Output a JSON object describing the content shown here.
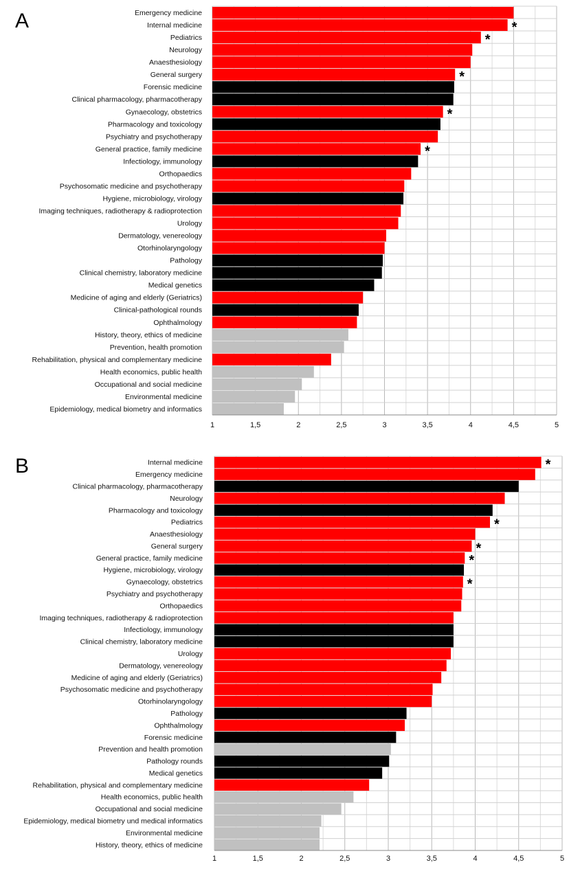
{
  "colors": {
    "red": "#ff0000",
    "black": "#000000",
    "gray": "#c0c0c0",
    "grid": "#b8b8b8"
  },
  "chart_data": [
    {
      "panel_label": "A",
      "type": "bar",
      "orientation": "horizontal",
      "xlim": [
        1,
        5
      ],
      "ticks": [
        "1",
        "1,5",
        "2",
        "2,5",
        "3",
        "3,5",
        "4",
        "4,5",
        "5"
      ],
      "tick_values": [
        1,
        1.5,
        2,
        2.5,
        3,
        3.5,
        4,
        4.5,
        5
      ],
      "grid": true,
      "bars": [
        {
          "label": "Emergency medicine",
          "value": 4.5,
          "color": "red",
          "star": false
        },
        {
          "label": "Internal medicine",
          "value": 4.43,
          "color": "red",
          "star": true
        },
        {
          "label": "Pediatrics",
          "value": 4.12,
          "color": "red",
          "star": true
        },
        {
          "label": "Neurology",
          "value": 4.02,
          "color": "red",
          "star": false
        },
        {
          "label": "Anaesthesiology",
          "value": 4.0,
          "color": "red",
          "star": false
        },
        {
          "label": "General surgery",
          "value": 3.82,
          "color": "red",
          "star": true
        },
        {
          "label": "Forensic medicine",
          "value": 3.81,
          "color": "black",
          "star": false
        },
        {
          "label": "Clinical pharmacology, pharmacotherapy",
          "value": 3.8,
          "color": "black",
          "star": false
        },
        {
          "label": "Gynaecology, obstetrics",
          "value": 3.68,
          "color": "red",
          "star": true
        },
        {
          "label": "Pharmacology and toxicology",
          "value": 3.65,
          "color": "black",
          "star": false
        },
        {
          "label": "Psychiatry and psychotherapy",
          "value": 3.62,
          "color": "red",
          "star": false
        },
        {
          "label": "General practice, family medicine",
          "value": 3.42,
          "color": "red",
          "star": true
        },
        {
          "label": "Infectiology, immunology",
          "value": 3.39,
          "color": "black",
          "star": false
        },
        {
          "label": "Orthopaedics",
          "value": 3.31,
          "color": "red",
          "star": false
        },
        {
          "label": "Psychosomatic medicine and psychotherapy",
          "value": 3.23,
          "color": "red",
          "star": false
        },
        {
          "label": "Hygiene, microbiology, virology",
          "value": 3.22,
          "color": "black",
          "star": false
        },
        {
          "label": "Imaging techniques, radiotherapy & radioprotection",
          "value": 3.19,
          "color": "red",
          "star": false
        },
        {
          "label": "Urology",
          "value": 3.16,
          "color": "red",
          "star": false
        },
        {
          "label": "Dermatology, venereology",
          "value": 3.02,
          "color": "red",
          "star": false
        },
        {
          "label": "Otorhinolaryngology",
          "value": 3.0,
          "color": "red",
          "star": false
        },
        {
          "label": "Pathology",
          "value": 2.98,
          "color": "black",
          "star": false
        },
        {
          "label": "Clinical chemistry, laboratory medicine",
          "value": 2.97,
          "color": "black",
          "star": false
        },
        {
          "label": "Medical genetics",
          "value": 2.88,
          "color": "black",
          "star": false
        },
        {
          "label": "Medicine of aging and elderly (Geriatrics)",
          "value": 2.75,
          "color": "red",
          "star": false
        },
        {
          "label": "Clinical-pathological rounds",
          "value": 2.7,
          "color": "black",
          "star": false
        },
        {
          "label": "Ophthalmology",
          "value": 2.68,
          "color": "red",
          "star": false
        },
        {
          "label": "History, theory, ethics of medicine",
          "value": 2.58,
          "color": "gray",
          "star": false
        },
        {
          "label": "Prevention, health promotion",
          "value": 2.53,
          "color": "gray",
          "star": false
        },
        {
          "label": "Rehabilitation, physical and complementary medicine",
          "value": 2.38,
          "color": "red",
          "star": false
        },
        {
          "label": "Health economics, public health",
          "value": 2.18,
          "color": "gray",
          "star": false
        },
        {
          "label": "Occupational and social medicine",
          "value": 2.04,
          "color": "gray",
          "star": false
        },
        {
          "label": "Environmental medicine",
          "value": 1.96,
          "color": "gray",
          "star": false
        },
        {
          "label": "Epidemiology, medical biometry and informatics",
          "value": 1.83,
          "color": "gray",
          "star": false
        }
      ]
    },
    {
      "panel_label": "B",
      "type": "bar",
      "orientation": "horizontal",
      "xlim": [
        1,
        5
      ],
      "ticks": [
        "1",
        "1,5",
        "2",
        "2,5",
        "3",
        "3,5",
        "4",
        "4,5",
        "5"
      ],
      "tick_values": [
        1,
        1.5,
        2,
        2.5,
        3,
        3.5,
        4,
        4.5,
        5
      ],
      "grid": true,
      "bars": [
        {
          "label": "Internal medicine",
          "value": 4.76,
          "color": "red",
          "star": true
        },
        {
          "label": "Emergency medicine",
          "value": 4.69,
          "color": "red",
          "star": false
        },
        {
          "label": "Clinical pharmacology, pharmacotherapy",
          "value": 4.5,
          "color": "black",
          "star": false
        },
        {
          "label": "Neurology",
          "value": 4.34,
          "color": "red",
          "star": false
        },
        {
          "label": "Pharmacology and toxicology",
          "value": 4.2,
          "color": "black",
          "star": false
        },
        {
          "label": "Pediatrics",
          "value": 4.17,
          "color": "red",
          "star": true
        },
        {
          "label": "Anaesthesiology",
          "value": 4.0,
          "color": "red",
          "star": false
        },
        {
          "label": "General surgery",
          "value": 3.96,
          "color": "red",
          "star": true
        },
        {
          "label": "General practice, family medicine",
          "value": 3.88,
          "color": "red",
          "star": true
        },
        {
          "label": "Hygiene, microbiology, virology",
          "value": 3.87,
          "color": "black",
          "star": false
        },
        {
          "label": "Gynaecology, obstetrics",
          "value": 3.86,
          "color": "red",
          "star": true
        },
        {
          "label": "Psychiatry and psychotherapy",
          "value": 3.85,
          "color": "red",
          "star": false
        },
        {
          "label": "Orthopaedics",
          "value": 3.84,
          "color": "red",
          "star": false
        },
        {
          "label": "Imaging techniques, radiotherapy & radioprotection",
          "value": 3.75,
          "color": "red",
          "star": false
        },
        {
          "label": "Infectiology, immunology",
          "value": 3.75,
          "color": "black",
          "star": false
        },
        {
          "label": "Clinical chemistry, laboratory medicine",
          "value": 3.75,
          "color": "black",
          "star": false
        },
        {
          "label": "Urology",
          "value": 3.72,
          "color": "red",
          "star": false
        },
        {
          "label": "Dermatology, venereology",
          "value": 3.67,
          "color": "red",
          "star": false
        },
        {
          "label": "Medicine of aging and elderly (Geriatrics)",
          "value": 3.61,
          "color": "red",
          "star": false
        },
        {
          "label": "Psychosomatic medicine and psychotherapy",
          "value": 3.51,
          "color": "red",
          "star": false
        },
        {
          "label": "Otorhinolaryngology",
          "value": 3.5,
          "color": "red",
          "star": false
        },
        {
          "label": "Pathology",
          "value": 3.21,
          "color": "black",
          "star": false
        },
        {
          "label": "Ophthalmology",
          "value": 3.19,
          "color": "red",
          "star": false
        },
        {
          "label": "Forensic medicine",
          "value": 3.09,
          "color": "black",
          "star": false
        },
        {
          "label": "Prevention and health promotion",
          "value": 3.03,
          "color": "gray",
          "star": false
        },
        {
          "label": "Pathology rounds",
          "value": 3.01,
          "color": "black",
          "star": false
        },
        {
          "label": "Medical genetics",
          "value": 2.93,
          "color": "black",
          "star": false
        },
        {
          "label": "Rehabilitation, physical and complementary medicine",
          "value": 2.78,
          "color": "red",
          "star": false
        },
        {
          "label": "Health economics, public health",
          "value": 2.6,
          "color": "gray",
          "star": false
        },
        {
          "label": "Occupational and social medicine",
          "value": 2.46,
          "color": "gray",
          "star": false
        },
        {
          "label": "Epidemiology, medical biometry und medical informatics",
          "value": 2.23,
          "color": "gray",
          "star": false
        },
        {
          "label": "Environmental medicine",
          "value": 2.21,
          "color": "gray",
          "star": false
        },
        {
          "label": "History, theory, ethics of medicine",
          "value": 2.21,
          "color": "gray",
          "star": false
        }
      ]
    }
  ],
  "star_symbol": "*"
}
